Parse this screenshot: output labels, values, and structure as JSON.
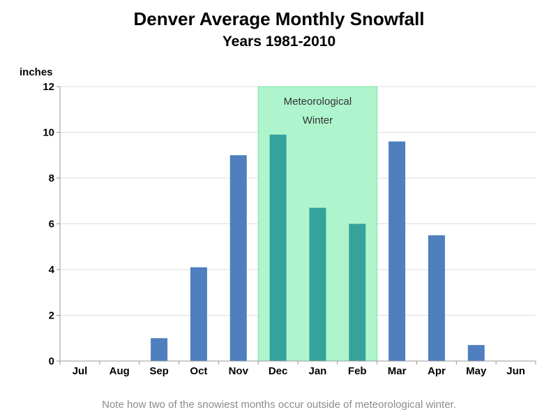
{
  "header": {
    "title": "Denver Average Monthly Snowfall",
    "subtitle": "Years 1981-2010"
  },
  "footnote": "Note how two of the snowiest months occur outside of meteorological winter.",
  "chart_data": {
    "type": "bar",
    "title": "Denver Average Monthly Snowfall",
    "subtitle": "Years 1981-2010",
    "xlabel": "",
    "ylabel": "inches",
    "categories": [
      "Jul",
      "Aug",
      "Sep",
      "Oct",
      "Nov",
      "Dec",
      "Jan",
      "Feb",
      "Mar",
      "Apr",
      "May",
      "Jun"
    ],
    "values": [
      0,
      0,
      1.0,
      4.1,
      9.0,
      9.9,
      6.7,
      6.0,
      9.6,
      5.5,
      0.7,
      0
    ],
    "ylim": [
      0,
      12
    ],
    "yticks": [
      0,
      2,
      4,
      6,
      8,
      10,
      12
    ],
    "grid": true,
    "highlight_band": {
      "label_lines": [
        "Meteorological",
        "Winter"
      ],
      "categories": [
        "Dec",
        "Jan",
        "Feb"
      ]
    },
    "colors": {
      "bar": "#4f7fbe",
      "bar_highlighted": "#35a39c",
      "band_fill": "#aef5cd",
      "band_stroke": "#7ee0a8",
      "grid": "#dddddd",
      "axis": "#999999"
    }
  }
}
